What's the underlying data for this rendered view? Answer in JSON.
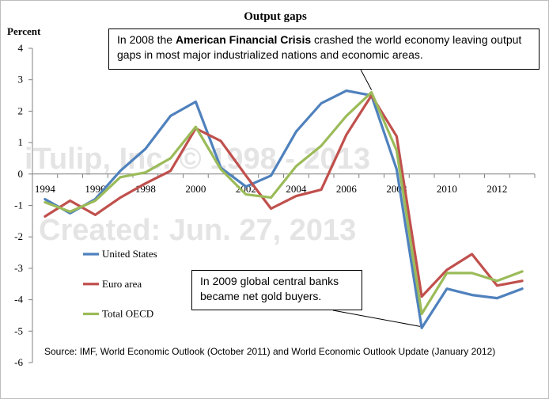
{
  "chart_data": {
    "type": "line",
    "title": "Output gaps",
    "ylabel": "Percent",
    "xlabel": "",
    "ylim": [
      -6,
      4
    ],
    "xlim": [
      1994,
      2013
    ],
    "yticks": [
      4,
      3,
      2,
      1,
      0,
      -1,
      -2,
      -3,
      -4,
      -5,
      -6
    ],
    "xtick_labels": [
      "1994",
      "1996",
      "1998",
      "2000",
      "2002",
      "2004",
      "2006",
      "2008",
      "2010",
      "2012"
    ],
    "x": [
      1994,
      1995,
      1996,
      1997,
      1998,
      1999,
      2000,
      2001,
      2002,
      2003,
      2004,
      2005,
      2006,
      2007,
      2008,
      2009,
      2010,
      2011,
      2012,
      2013
    ],
    "series": [
      {
        "name": "United States",
        "color": "#4f81bd",
        "values": [
          -0.8,
          -1.25,
          -0.8,
          0.1,
          0.8,
          1.85,
          2.3,
          0.2,
          -0.4,
          -0.05,
          1.35,
          2.25,
          2.65,
          2.5,
          0.15,
          -4.9,
          -3.65,
          -3.85,
          -3.95,
          -3.65
        ]
      },
      {
        "name": "Euro area",
        "color": "#c0504d",
        "values": [
          -1.35,
          -0.85,
          -1.3,
          -0.75,
          -0.3,
          0.1,
          1.45,
          1.05,
          -0.05,
          -1.1,
          -0.7,
          -0.5,
          1.25,
          2.5,
          1.2,
          -3.9,
          -3.05,
          -2.55,
          -3.55,
          -3.4
        ]
      },
      {
        "name": "Total OECD",
        "color": "#9bbb59",
        "values": [
          -0.9,
          -1.2,
          -0.85,
          -0.1,
          0.05,
          0.5,
          1.5,
          0.15,
          -0.65,
          -0.75,
          0.25,
          0.9,
          1.85,
          2.6,
          0.75,
          -4.45,
          -3.15,
          -3.15,
          -3.4,
          -3.1
        ]
      }
    ],
    "grid": false,
    "legend_position": "lower-left",
    "annotations": {
      "crisis_pre": "In 2008 the ",
      "crisis_bold": "American Financial Crisis",
      "crisis_post": " crashed the world economy leaving output gaps in most major industrialized nations and economic areas.",
      "gold": "In 2009 global central banks became net gold buyers."
    },
    "watermark": {
      "line1": "iTulip, Inc. © 1998 - 2013",
      "line2": "Created: Jun. 27, 2013"
    },
    "source": "Source: IMF, World Economic Outlook (October 2011) and World Economic Outlook Update (January 2012)"
  }
}
